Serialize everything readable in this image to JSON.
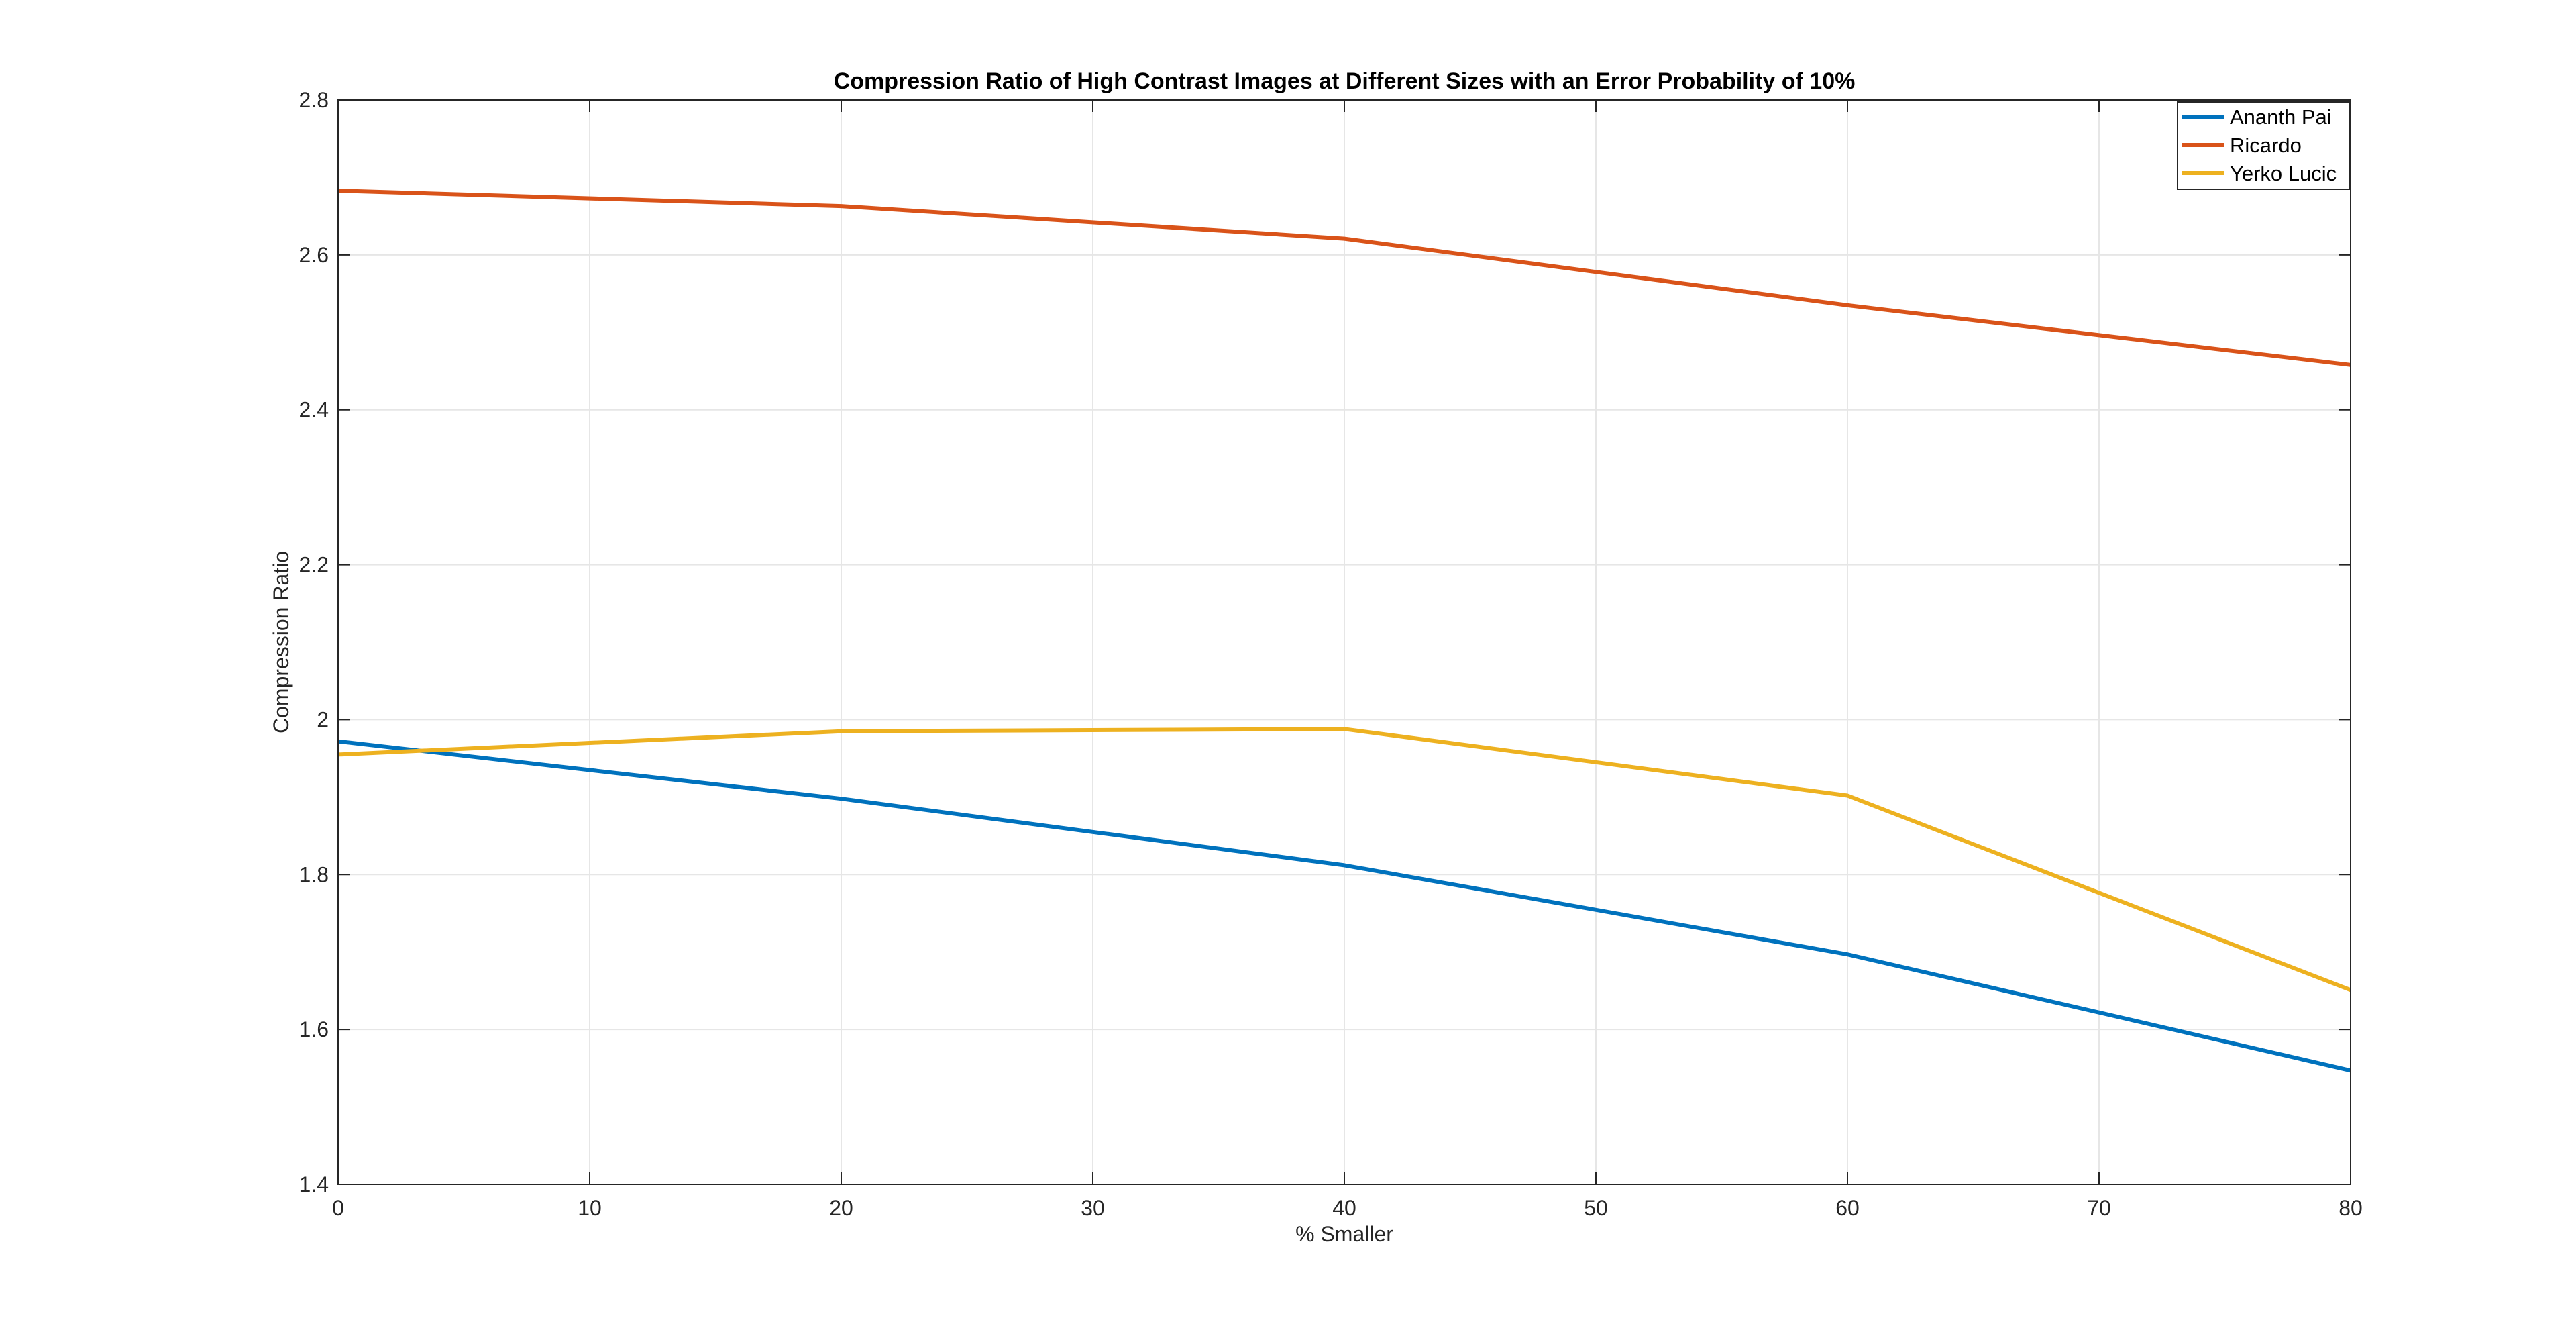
{
  "chart_data": {
    "type": "line",
    "title": "Compression Ratio of High Contrast Images at Different Sizes with an Error Probability of 10%",
    "xlabel": "% Smaller",
    "ylabel": "Compression Ratio",
    "xlim": [
      0,
      80
    ],
    "ylim": [
      1.4,
      2.8
    ],
    "xticks": [
      0,
      10,
      20,
      30,
      40,
      50,
      60,
      70,
      80
    ],
    "yticks": [
      1.4,
      1.6,
      1.8,
      2.0,
      2.2,
      2.4,
      2.6,
      2.8
    ],
    "xtick_labels": [
      "0",
      "10",
      "20",
      "30",
      "40",
      "50",
      "60",
      "70",
      "80"
    ],
    "ytick_labels": [
      "1.4",
      "1.6",
      "1.8",
      "2",
      "2.2",
      "2.4",
      "2.6",
      "2.8"
    ],
    "grid": true,
    "legend_position": "top-right",
    "series": [
      {
        "name": "Ananth Pai",
        "color": "#0072BD",
        "x": [
          0,
          20,
          40,
          60,
          80
        ],
        "y": [
          1.972,
          1.898,
          1.812,
          1.697,
          1.547
        ]
      },
      {
        "name": "Ricardo",
        "color": "#D95319",
        "x": [
          0,
          20,
          40,
          60,
          80
        ],
        "y": [
          2.683,
          2.663,
          2.621,
          2.535,
          2.458
        ]
      },
      {
        "name": "Yerko Lucic",
        "color": "#EDB120",
        "x": [
          0,
          20,
          40,
          60,
          80
        ],
        "y": [
          1.955,
          1.985,
          1.988,
          1.902,
          1.651
        ]
      }
    ]
  }
}
